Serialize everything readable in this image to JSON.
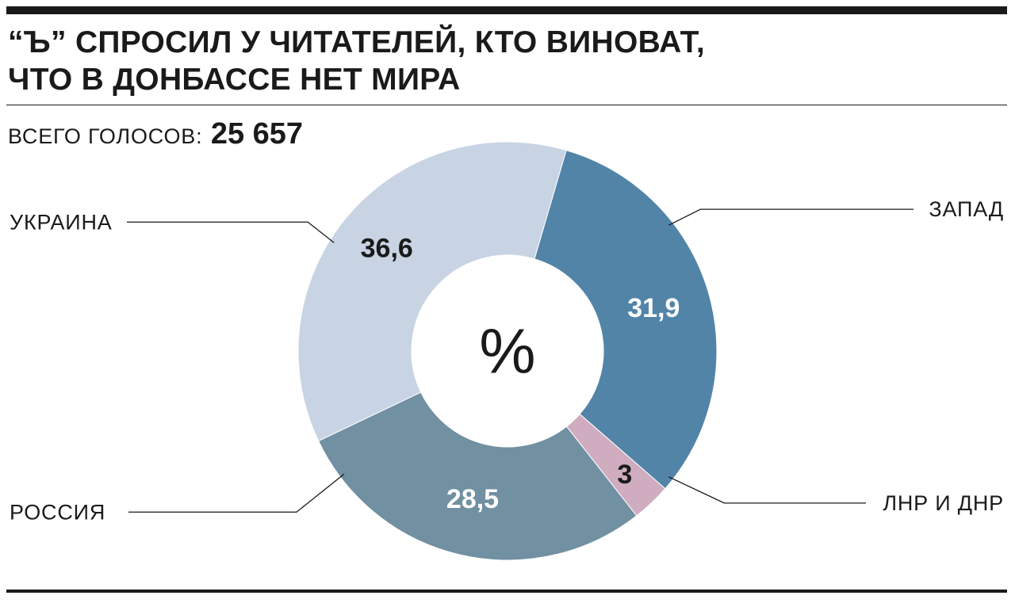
{
  "title": {
    "line1": "“Ъ” спросил у читателей, кто виноват,",
    "line2": "что в Донбассе нет мира"
  },
  "total": {
    "label": "ВСЕГО ГОЛОСОВ:",
    "value": "25 657"
  },
  "chart_data": {
    "type": "pie",
    "style": "donut",
    "center_label": "%",
    "start_category": "ЗАПАД",
    "direction": "clockwise",
    "slices": [
      {
        "name": "ЗАПАД",
        "value": 31.9,
        "label": "31,9",
        "color": "#5284a8",
        "label_color": "#ffffff"
      },
      {
        "name": "ЛНР И ДНР",
        "value": 3,
        "label": "3",
        "color": "#cfacc0",
        "label_color": "#1a1a1a"
      },
      {
        "name": "РОССИЯ",
        "value": 28.5,
        "label": "28,5",
        "color": "#7190a2",
        "label_color": "#ffffff"
      },
      {
        "name": "УКРАИНА",
        "value": 36.6,
        "label": "36,6",
        "color": "#c8d3e3",
        "label_color": "#1a1a1a"
      }
    ]
  }
}
